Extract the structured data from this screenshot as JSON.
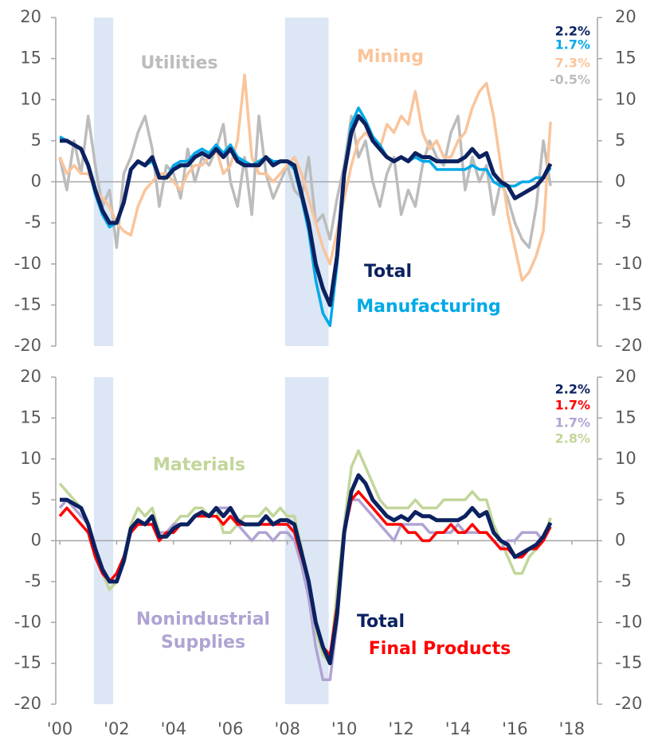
{
  "chart_data": [
    {
      "type": "line",
      "x": [
        2000,
        2000.25,
        2000.5,
        2000.75,
        2001,
        2001.25,
        2001.5,
        2001.75,
        2002,
        2002.25,
        2002.5,
        2002.75,
        2003,
        2003.25,
        2003.5,
        2003.75,
        2004,
        2004.25,
        2004.5,
        2004.75,
        2005,
        2005.25,
        2005.5,
        2005.75,
        2006,
        2006.25,
        2006.5,
        2006.75,
        2007,
        2007.25,
        2007.5,
        2007.75,
        2008,
        2008.25,
        2008.5,
        2008.75,
        2009,
        2009.25,
        2009.5,
        2009.75,
        2010,
        2010.25,
        2010.5,
        2010.75,
        2011,
        2011.25,
        2011.5,
        2011.75,
        2012,
        2012.25,
        2012.5,
        2012.75,
        2013,
        2013.25,
        2013.5,
        2013.75,
        2014,
        2014.25,
        2014.5,
        2014.75,
        2015,
        2015.25,
        2015.5,
        2015.75,
        2016,
        2016.25,
        2016.5,
        2016.75,
        2017,
        2017.25
      ],
      "xlim": [
        1999.86,
        2018.9
      ],
      "ylim": [
        -20,
        20
      ],
      "yticks": [
        -20,
        -15,
        -10,
        -5,
        0,
        5,
        10,
        15,
        20
      ],
      "y2lim": [
        -20,
        20
      ],
      "y2ticks": [
        -20,
        -15,
        -10,
        -5,
        0,
        5,
        10,
        15,
        20
      ],
      "shaded": [
        [
          2001.2,
          2001.88
        ],
        [
          2007.92,
          2009.45
        ]
      ],
      "series": [
        {
          "name": "Total",
          "color": "#0b2160",
          "end_label": "2.2%",
          "values": [
            5,
            5,
            4.5,
            4,
            2,
            -1,
            -3.5,
            -5,
            -5,
            -2.5,
            1.5,
            2.5,
            2,
            3,
            0.5,
            0.5,
            1.5,
            2,
            2,
            3,
            3.5,
            3,
            4,
            3,
            4,
            2.5,
            2,
            2,
            2,
            3,
            2,
            2.5,
            2.5,
            2,
            -1.5,
            -5,
            -10,
            -13,
            -15,
            -9,
            1,
            6,
            8,
            7,
            5,
            4,
            3,
            2.5,
            3,
            2.5,
            3.5,
            3,
            3,
            2.5,
            2.5,
            2.5,
            2.5,
            3,
            4,
            3,
            3.5,
            1,
            0,
            -0.5,
            -2,
            -1.5,
            -1,
            -0.5,
            0.5,
            2.2
          ]
        },
        {
          "name": "Manufacturing",
          "color": "#00a9e8",
          "end_label": "1.7%",
          "values": [
            5.5,
            5,
            4.5,
            4,
            2,
            -1.5,
            -4,
            -5.5,
            -5,
            -2.5,
            1.5,
            2.5,
            2,
            2.5,
            0.5,
            0.5,
            2,
            2.5,
            2.5,
            3.5,
            4,
            3.5,
            4.5,
            3.5,
            4.5,
            3,
            2.5,
            2,
            2.5,
            3,
            2.5,
            2.5,
            2.5,
            1.5,
            -2,
            -6,
            -12,
            -16,
            -17.5,
            -10,
            1,
            7,
            9,
            7.5,
            5.5,
            4.5,
            3,
            2.5,
            3,
            2.5,
            3,
            2.5,
            2.5,
            1.5,
            1.5,
            1.5,
            1.5,
            1.5,
            2,
            1.5,
            1.5,
            0,
            -0.5,
            -0.5,
            -0.5,
            0,
            0,
            0.5,
            0.5,
            1.7
          ]
        },
        {
          "name": "Mining",
          "color": "#fac49a",
          "end_label": "7.3%",
          "values": [
            3,
            1,
            2,
            1,
            1,
            -1,
            -2,
            -3,
            -5,
            -6,
            -6.5,
            -3,
            -1,
            0,
            1,
            1,
            0,
            -1,
            1,
            2,
            2,
            3,
            4,
            1,
            2,
            5,
            13,
            3,
            1,
            1,
            0,
            1,
            2,
            3,
            1,
            -2,
            -5,
            -8,
            -10,
            -6,
            -2,
            2,
            5,
            6,
            5,
            4,
            7,
            6,
            8,
            7,
            11,
            6,
            4,
            5,
            3,
            3,
            5,
            6,
            9,
            11,
            12,
            8,
            2,
            -4,
            -8,
            -12,
            -11,
            -9,
            -6,
            7.3
          ]
        },
        {
          "name": "Utilities",
          "color": "#bcbcbc",
          "end_label": "-0.5%",
          "values": [
            3,
            -1,
            5,
            1,
            8,
            2,
            -3,
            -1,
            -8,
            1,
            3,
            6,
            8,
            4,
            -3,
            2,
            1,
            -2,
            4,
            0,
            3,
            2,
            4,
            7,
            0,
            -3,
            3,
            -4,
            8,
            1,
            -2,
            0,
            2,
            -1,
            -2,
            3,
            -5,
            -4,
            -7,
            -2,
            2,
            8,
            3,
            5,
            0,
            -3,
            1,
            3,
            -4,
            -1,
            -3,
            2,
            5,
            3,
            2,
            6,
            8,
            -1,
            3,
            0,
            2,
            -4,
            0,
            -2,
            -5,
            -7,
            -8,
            -3,
            5,
            -0.5
          ]
        }
      ]
    },
    {
      "type": "line",
      "x": [
        2000,
        2000.25,
        2000.5,
        2000.75,
        2001,
        2001.25,
        2001.5,
        2001.75,
        2002,
        2002.25,
        2002.5,
        2002.75,
        2003,
        2003.25,
        2003.5,
        2003.75,
        2004,
        2004.25,
        2004.5,
        2004.75,
        2005,
        2005.25,
        2005.5,
        2005.75,
        2006,
        2006.25,
        2006.5,
        2006.75,
        2007,
        2007.25,
        2007.5,
        2007.75,
        2008,
        2008.25,
        2008.5,
        2008.75,
        2009,
        2009.25,
        2009.5,
        2009.75,
        2010,
        2010.25,
        2010.5,
        2010.75,
        2011,
        2011.25,
        2011.5,
        2011.75,
        2012,
        2012.25,
        2012.5,
        2012.75,
        2013,
        2013.25,
        2013.5,
        2013.75,
        2014,
        2014.25,
        2014.5,
        2014.75,
        2015,
        2015.25,
        2015.5,
        2015.75,
        2016,
        2016.25,
        2016.5,
        2016.75,
        2017,
        2017.25
      ],
      "xlim": [
        1999.86,
        2018.9
      ],
      "xticks": [
        {
          "value": 2000,
          "label": "'00"
        },
        {
          "value": 2002,
          "label": "'02"
        },
        {
          "value": 2004,
          "label": "'04"
        },
        {
          "value": 2006,
          "label": "'06"
        },
        {
          "value": 2008,
          "label": "'08"
        },
        {
          "value": 2010,
          "label": "'10"
        },
        {
          "value": 2012,
          "label": "'12"
        },
        {
          "value": 2014,
          "label": "'14"
        },
        {
          "value": 2016,
          "label": "'16"
        },
        {
          "value": 2018,
          "label": "'18"
        }
      ],
      "ylim": [
        -20,
        20
      ],
      "yticks": [
        -20,
        -15,
        -10,
        -5,
        0,
        5,
        10,
        15,
        20
      ],
      "y2lim": [
        -20,
        20
      ],
      "y2ticks": [
        -20,
        -15,
        -10,
        -5,
        0,
        5,
        10,
        15,
        20
      ],
      "shaded": [
        [
          2001.2,
          2001.88
        ],
        [
          2007.92,
          2009.45
        ]
      ],
      "series": [
        {
          "name": "Total",
          "color": "#0b2160",
          "end_label": "2.2%",
          "values": [
            5,
            5,
            4.5,
            4,
            2,
            -1,
            -3.5,
            -5,
            -5,
            -2.5,
            1.5,
            2.5,
            2,
            3,
            0.5,
            0.5,
            1.5,
            2,
            2,
            3,
            3.5,
            3,
            4,
            3,
            4,
            2.5,
            2,
            2,
            2,
            3,
            2,
            2.5,
            2.5,
            2,
            -1.5,
            -5,
            -10,
            -13,
            -15,
            -9,
            1,
            6,
            8,
            7,
            5,
            4,
            3,
            2.5,
            3,
            2.5,
            3.5,
            3,
            3,
            2.5,
            2.5,
            2.5,
            2.5,
            3,
            4,
            3,
            3.5,
            1,
            0,
            -0.5,
            -2,
            -1.5,
            -1,
            -0.5,
            0.5,
            2.2
          ]
        },
        {
          "name": "Final Products",
          "color": "#ff0000",
          "end_label": "1.7%",
          "values": [
            3,
            4,
            3,
            2,
            1,
            -2,
            -4,
            -5,
            -4,
            -2,
            1,
            2,
            2,
            2,
            0,
            1,
            1,
            2,
            2,
            3,
            3,
            3,
            3,
            2,
            3,
            2,
            2,
            2,
            2,
            2,
            2,
            2,
            2,
            1,
            -2,
            -5,
            -10,
            -13,
            -14,
            -8,
            1,
            5,
            6,
            5,
            4,
            3,
            2,
            2,
            2,
            1,
            1,
            0,
            0,
            1,
            1,
            2,
            1,
            1,
            2,
            1,
            1,
            0,
            -1,
            -1,
            -2,
            -2,
            -1,
            -1,
            0,
            1.7
          ]
        },
        {
          "name": "Nonindustrial Supplies",
          "color": "#b1a3d3",
          "end_label": "1.7%",
          "values": [
            4,
            5,
            4,
            3,
            2,
            -1,
            -4,
            -5,
            -4,
            -2,
            1,
            2,
            2,
            2,
            1,
            1,
            2,
            2,
            2,
            3,
            3,
            3,
            4,
            4,
            4,
            2,
            1,
            0,
            1,
            1,
            0,
            1,
            1,
            0,
            -3,
            -7,
            -13,
            -17,
            -17,
            -10,
            1,
            5,
            5,
            4,
            3,
            2,
            1,
            0,
            2,
            2,
            2,
            2,
            1,
            1,
            1,
            1,
            2,
            1,
            1,
            1,
            1,
            0,
            -1,
            0,
            0,
            1,
            1,
            1,
            0,
            1.7
          ]
        },
        {
          "name": "Materials",
          "color": "#c2d69a",
          "end_label": "2.8%",
          "values": [
            7,
            6,
            5,
            4,
            2,
            -1,
            -4,
            -6,
            -5,
            -2,
            2,
            4,
            3,
            4,
            1,
            1,
            2,
            3,
            3,
            4,
            4,
            3,
            4,
            1,
            1,
            2,
            3,
            3,
            3,
            4,
            3,
            4,
            3,
            3,
            -1,
            -6,
            -11,
            -14,
            -15,
            -6,
            2,
            9,
            11,
            9,
            7,
            5,
            4,
            4,
            4,
            4,
            5,
            4,
            4,
            4,
            5,
            5,
            5,
            5,
            6,
            5,
            5,
            2,
            0,
            -2,
            -4,
            -4,
            -2,
            -1,
            0,
            2.8
          ]
        }
      ]
    }
  ]
}
